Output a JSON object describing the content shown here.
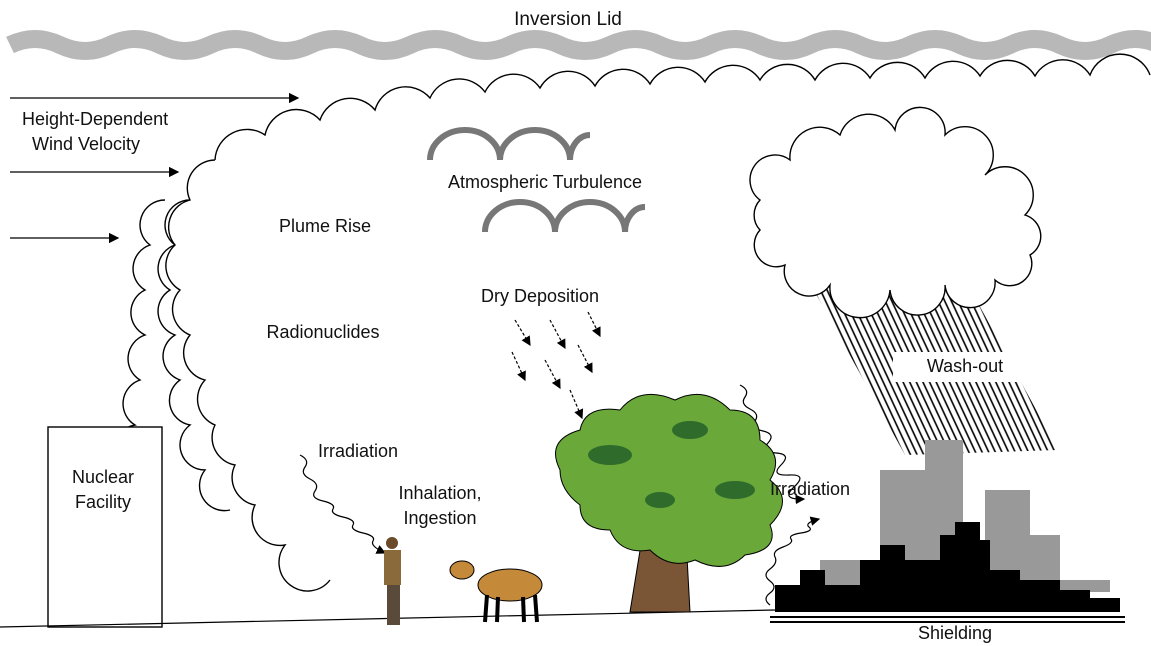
{
  "labels": {
    "inversion_lid": "Inversion Lid",
    "wind_velocity": [
      "Height-Dependent",
      "Wind Velocity"
    ],
    "atmospheric_turbulence": "Atmospheric Turbulence",
    "plume_rise": "Plume Rise",
    "dry_deposition": "Dry Deposition",
    "radionuclides": "Radionuclides",
    "wash_out": "Wash-out",
    "irradiation_left": "Irradiation",
    "irradiation_right": "Irradiation",
    "inhalation_ingestion": [
      "Inhalation,",
      "Ingestion"
    ],
    "nuclear_facility": [
      "Nuclear",
      "Facility"
    ],
    "shielding": "Shielding"
  }
}
